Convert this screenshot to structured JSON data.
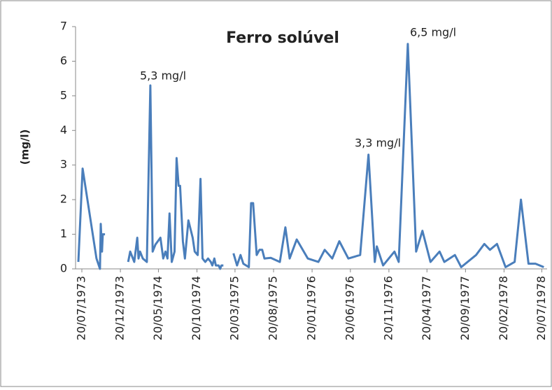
{
  "chart_data": {
    "type": "line",
    "title": "Ferro solúvel",
    "y_label": "(mg/l)",
    "annotations": [
      "5,3 mg/l",
      "3,3 mg/l",
      "6,5 mg/l"
    ],
    "x": [
      "1973-07-06",
      "1973-07-23",
      "1973-09-16",
      "1973-09-30",
      "1973-10-03",
      "1973-10-08",
      "1973-10-11",
      "1973-10-20",
      null,
      "1974-01-20",
      "1974-01-28",
      "1974-02-13",
      "1974-02-25",
      "1974-03-02",
      "1974-03-08",
      "1974-03-19",
      "1974-04-04",
      "1974-04-18",
      "1974-04-27",
      "1974-05-08",
      "1974-05-28",
      "1974-06-08",
      "1974-06-17",
      "1974-06-25",
      "1974-07-03",
      "1974-07-12",
      "1974-07-23",
      "1974-07-31",
      "1974-08-08",
      "1974-08-14",
      "1974-08-25",
      "1974-09-02",
      "1974-09-16",
      "1974-10-03",
      "1974-10-11",
      "1974-10-23",
      "1974-11-03",
      "1974-11-11",
      "1974-11-22",
      "1974-12-03",
      "1974-12-14",
      "1974-12-20",
      "1974-12-28",
      "1975-01-03",
      "1975-01-14",
      "1975-01-20",
      "1975-01-25",
      "1975-02-02",
      null,
      "1975-03-14",
      "1975-03-28",
      "1975-04-11",
      "1975-04-22",
      "1975-05-14",
      "1975-05-23",
      "1975-05-31",
      "1975-06-14",
      "1975-06-25",
      "1975-07-06",
      "1975-07-15",
      "1975-08-09",
      "1975-09-14",
      "1975-10-06",
      "1975-10-23",
      "1975-11-20",
      "1976-01-03",
      "1976-02-14",
      "1976-03-10",
      "1976-04-09",
      "1976-05-07",
      "1976-06-12",
      "1976-07-29",
      "1976-08-31",
      "1976-09-25",
      "1976-10-03",
      "1976-10-28",
      "1976-12-12",
      "1976-12-29",
      "1977-02-03",
      "1977-03-08",
      "1977-04-02",
      "1977-05-04",
      "1977-06-09",
      "1977-06-28",
      "1977-08-09",
      "1977-09-03",
      "1977-11-01",
      "1977-12-04",
      "1977-12-26",
      "1978-01-23",
      "1978-02-26",
      "1978-04-03",
      "1978-04-28",
      "1978-05-28",
      "1978-06-25",
      "1978-07-28"
    ],
    "series": [
      {
        "name": "Ferro solúvel",
        "color": "#4a7ebb",
        "values": [
          0.2,
          2.9,
          0.3,
          0,
          1.3,
          0.5,
          1.0,
          1.0,
          null,
          0.2,
          0.5,
          0.2,
          0.9,
          0.3,
          0.5,
          0.3,
          0.2,
          5.3,
          0.5,
          0.7,
          0.9,
          0.3,
          0.5,
          0.3,
          1.6,
          0.2,
          0.5,
          3.2,
          2.4,
          2.4,
          0.8,
          0.3,
          1.4,
          0.9,
          0.5,
          0.4,
          2.6,
          0.3,
          0.2,
          0.3,
          0.2,
          0.1,
          0.3,
          0.1,
          0.1,
          0,
          0.1,
          0.1,
          null,
          0.45,
          0.1,
          0.4,
          0.15,
          0.05,
          1.9,
          1.9,
          0.4,
          0.55,
          0.55,
          0.3,
          0.32,
          0.2,
          1.2,
          0.3,
          0.85,
          0.3,
          0.2,
          0.55,
          0.3,
          0.8,
          0.3,
          0.4,
          3.3,
          0.2,
          0.65,
          0.1,
          0.5,
          0.2,
          6.5,
          0.5,
          1.1,
          0.2,
          0.5,
          0.2,
          0.4,
          0.05,
          0.4,
          0.72,
          0.55,
          0.72,
          0.05,
          0.2,
          2.0,
          0.15,
          0.15,
          0.05
        ]
      }
    ],
    "xlim": [
      "1973-06-25",
      "1978-08-10"
    ],
    "xticks": [
      {
        "value": "1973-07-20",
        "label": "20/07/1973"
      },
      {
        "value": "1973-12-20",
        "label": "20/12/1973"
      },
      {
        "value": "1974-05-20",
        "label": "20/05/1974"
      },
      {
        "value": "1974-10-20",
        "label": "20/10/1974"
      },
      {
        "value": "1975-03-20",
        "label": "20/03/1975"
      },
      {
        "value": "1975-08-20",
        "label": "20/08/1975"
      },
      {
        "value": "1976-01-20",
        "label": "20/01/1976"
      },
      {
        "value": "1976-06-20",
        "label": "20/06/1976"
      },
      {
        "value": "1976-11-20",
        "label": "20/11/1976"
      },
      {
        "value": "1977-04-20",
        "label": "20/04/1977"
      },
      {
        "value": "1977-09-20",
        "label": "20/09/1977"
      },
      {
        "value": "1978-02-20",
        "label": "20/02/1978"
      },
      {
        "value": "1978-07-20",
        "label": "20/07/1978"
      }
    ],
    "ylim": [
      0,
      7
    ],
    "yticks": [
      0,
      1,
      2,
      3,
      4,
      5,
      6,
      7
    ],
    "grid": false
  }
}
